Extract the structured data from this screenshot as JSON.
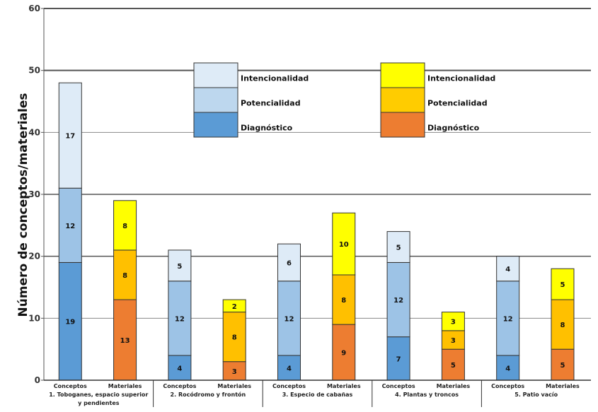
{
  "chart_data": {
    "type": "bar",
    "stacked": true,
    "title": "",
    "xlabel": "",
    "ylabel": "Número de conceptos/materiales",
    "ylim": [
      0,
      60
    ],
    "yticks": [
      0,
      10,
      20,
      30,
      40,
      50,
      60
    ],
    "grid": true,
    "groups": [
      {
        "label": "1. Toboganes, espacio superior y pendientes",
        "label_lines": [
          "1. Toboganes, espacio superior",
          "y pendientes"
        ]
      },
      {
        "label": "2. Rocódromo y frontón",
        "label_lines": [
          "2. Rocódromo y frontón"
        ]
      },
      {
        "label": "3. Especio de cabañas",
        "label_lines": [
          "3. Especio de cabañas"
        ]
      },
      {
        "label": "4. Plantas y troncos",
        "label_lines": [
          "4. Plantas y troncos"
        ]
      },
      {
        "label": "5. Patio vacío",
        "label_lines": [
          "5. Patio vacío"
        ]
      }
    ],
    "subcategories": [
      "Conceptos",
      "Materiales"
    ],
    "series": [
      {
        "name": "Diagnóstico",
        "subcategory": "Conceptos",
        "color": "#5b9bd5",
        "values": [
          19,
          4,
          4,
          7,
          4
        ]
      },
      {
        "name": "Potencialidad",
        "subcategory": "Conceptos",
        "color": "#9dc3e6",
        "values": [
          12,
          12,
          12,
          12,
          12
        ]
      },
      {
        "name": "Intencionalidad",
        "subcategory": "Conceptos",
        "color": "#deebf7",
        "values": [
          17,
          5,
          6,
          5,
          4
        ]
      },
      {
        "name": "Diagnóstico",
        "subcategory": "Materiales",
        "color": "#ed7d31",
        "values": [
          13,
          3,
          9,
          5,
          5
        ]
      },
      {
        "name": "Potencialidad",
        "subcategory": "Materiales",
        "color": "#ffc000",
        "values": [
          8,
          8,
          8,
          3,
          8
        ]
      },
      {
        "name": "Intencionalidad",
        "subcategory": "Materiales",
        "color": "#ffff00",
        "values": [
          8,
          2,
          10,
          3,
          5
        ]
      }
    ],
    "legends": [
      {
        "placement": "top-center-left",
        "entries": [
          {
            "name": "Intencionalidad",
            "color": "#deebf7"
          },
          {
            "name": "Potencialidad",
            "color": "#bdd7ee"
          },
          {
            "name": "Diagnóstico",
            "color": "#5b9bd5"
          }
        ]
      },
      {
        "placement": "top-center-right",
        "entries": [
          {
            "name": "Intencionalidad",
            "color": "#ffff00"
          },
          {
            "name": "Potencialidad",
            "color": "#ffcc00"
          },
          {
            "name": "Diagnóstico",
            "color": "#ed7d31"
          }
        ]
      }
    ]
  }
}
